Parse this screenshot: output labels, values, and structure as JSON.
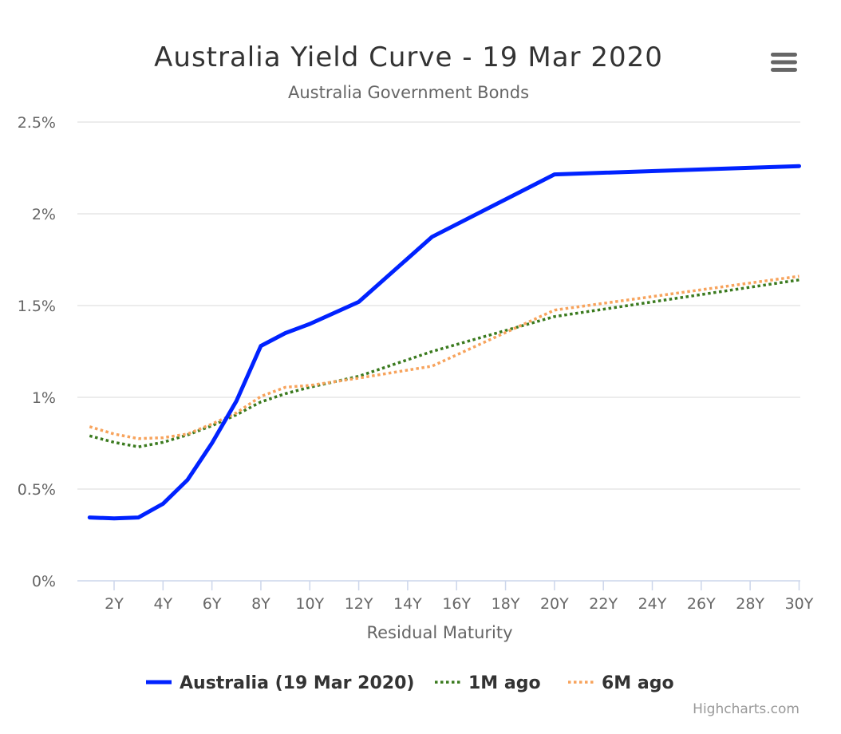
{
  "chart_data": {
    "type": "line",
    "title": "Australia Yield Curve - 19 Mar 2020",
    "subtitle": "Australia Government Bonds",
    "xlabel": "Residual Maturity",
    "ylabel": "",
    "x_unit": "years",
    "xlim": [
      0,
      30
    ],
    "ylim": [
      0,
      2.5
    ],
    "x_ticks": [
      {
        "value": 2,
        "label": "2Y"
      },
      {
        "value": 4,
        "label": "4Y"
      },
      {
        "value": 6,
        "label": "6Y"
      },
      {
        "value": 8,
        "label": "8Y"
      },
      {
        "value": 10,
        "label": "10Y"
      },
      {
        "value": 12,
        "label": "12Y"
      },
      {
        "value": 14,
        "label": "14Y"
      },
      {
        "value": 16,
        "label": "16Y"
      },
      {
        "value": 18,
        "label": "18Y"
      },
      {
        "value": 20,
        "label": "20Y"
      },
      {
        "value": 22,
        "label": "22Y"
      },
      {
        "value": 24,
        "label": "24Y"
      },
      {
        "value": 26,
        "label": "26Y"
      },
      {
        "value": 28,
        "label": "28Y"
      },
      {
        "value": 30,
        "label": "30Y"
      }
    ],
    "y_ticks": [
      {
        "value": 0,
        "label": "0%"
      },
      {
        "value": 0.5,
        "label": "0.5%"
      },
      {
        "value": 1,
        "label": "1%"
      },
      {
        "value": 1.5,
        "label": "1.5%"
      },
      {
        "value": 2,
        "label": "2%"
      },
      {
        "value": 2.5,
        "label": "2.5%"
      }
    ],
    "grid": true,
    "legend_position": "bottom-center",
    "series": [
      {
        "name": "Australia (19 Mar 2020)",
        "color": "#0022ff",
        "style": "solid",
        "x": [
          1,
          2,
          3,
          4,
          5,
          6,
          7,
          8,
          9,
          10,
          12,
          15,
          20,
          30
        ],
        "values": [
          0.345,
          0.34,
          0.345,
          0.42,
          0.55,
          0.75,
          0.98,
          1.28,
          1.35,
          1.4,
          1.52,
          1.875,
          2.215,
          2.26
        ]
      },
      {
        "name": "1M ago",
        "color": "#3a7a1e",
        "style": "dotted",
        "x": [
          1,
          2,
          3,
          4,
          5,
          6,
          7,
          8,
          9,
          10,
          12,
          15,
          20,
          30
        ],
        "values": [
          0.79,
          0.755,
          0.73,
          0.755,
          0.795,
          0.845,
          0.905,
          0.975,
          1.02,
          1.055,
          1.115,
          1.25,
          1.44,
          1.64
        ]
      },
      {
        "name": "6M ago",
        "color": "#f7a35c",
        "style": "dotted",
        "x": [
          1,
          2,
          3,
          4,
          5,
          6,
          7,
          8,
          9,
          10,
          12,
          15,
          20,
          30
        ],
        "values": [
          0.84,
          0.8,
          0.775,
          0.78,
          0.8,
          0.855,
          0.915,
          1.005,
          1.055,
          1.065,
          1.105,
          1.17,
          1.475,
          1.66
        ]
      }
    ]
  },
  "menu": {
    "icon": "hamburger-menu-icon"
  },
  "credits": "Highcharts.com"
}
